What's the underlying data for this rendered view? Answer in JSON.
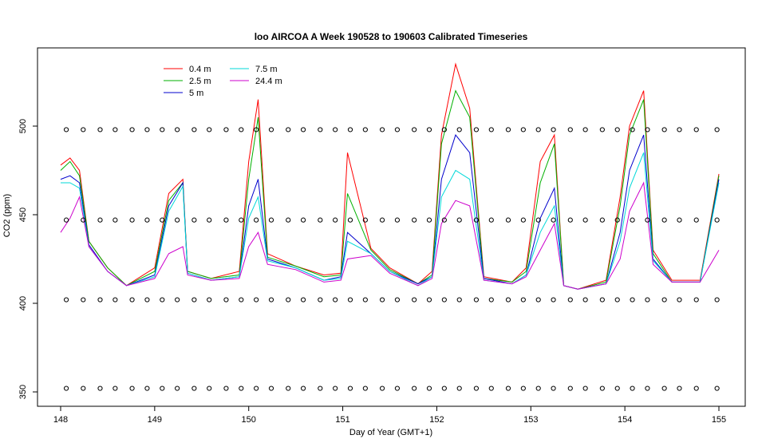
{
  "chart_data": {
    "type": "line",
    "title": "loo AIRCOA A  Week 190528 to 190603  Calibrated Timeseries",
    "xlabel": "Day of Year (GMT+1)",
    "ylabel": "CO2 (ppm)",
    "xlim": [
      148,
      155
    ],
    "ylim": [
      345,
      545
    ],
    "x_ticks": [
      148,
      149,
      150,
      151,
      152,
      153,
      154,
      155
    ],
    "y_ticks": [
      350,
      400,
      450,
      500
    ],
    "x_tick_labels": [
      "148",
      "149",
      "150",
      "151",
      "152",
      "153",
      "154",
      "155"
    ],
    "y_tick_labels": [
      "350",
      "400",
      "450",
      "500"
    ],
    "grid": false,
    "legend_position": "top-left",
    "legend": [
      "0.4 m",
      "2.5 m",
      "5 m",
      "7.5 m",
      "24.4 m"
    ],
    "series": [
      {
        "name": "0.4 m",
        "color": "#ff0000",
        "x": [
          148.0,
          148.1,
          148.2,
          148.3,
          148.5,
          148.7,
          149.0,
          149.15,
          149.3,
          149.35,
          149.6,
          149.9,
          150.0,
          150.1,
          150.2,
          150.5,
          150.8,
          150.98,
          151.05,
          151.3,
          151.5,
          151.8,
          151.95,
          152.05,
          152.2,
          152.35,
          152.5,
          152.8,
          152.95,
          153.1,
          153.25,
          153.35,
          153.5,
          153.8,
          153.95,
          154.05,
          154.2,
          154.3,
          154.5,
          154.8,
          155.0
        ],
        "y": [
          478,
          482,
          475,
          435,
          420,
          410,
          420,
          462,
          470,
          418,
          414,
          418,
          480,
          515,
          428,
          421,
          416,
          417,
          485,
          431,
          420,
          411,
          418,
          495,
          535,
          510,
          415,
          412,
          420,
          480,
          495,
          410,
          408,
          413,
          460,
          500,
          520,
          430,
          413,
          413,
          473
        ]
      },
      {
        "name": "2.5 m",
        "color": "#00b000",
        "x": [
          148.0,
          148.1,
          148.2,
          148.3,
          148.5,
          148.7,
          149.0,
          149.15,
          149.3,
          149.35,
          149.6,
          149.9,
          150.0,
          150.1,
          150.2,
          150.5,
          150.8,
          150.98,
          151.05,
          151.3,
          151.5,
          151.8,
          151.95,
          152.05,
          152.2,
          152.35,
          152.5,
          152.8,
          152.95,
          153.1,
          153.25,
          153.35,
          153.5,
          153.8,
          153.95,
          154.05,
          154.2,
          154.3,
          154.5,
          154.8,
          155.0
        ],
        "y": [
          475,
          480,
          472,
          435,
          420,
          410,
          418,
          458,
          468,
          418,
          414,
          416,
          470,
          505,
          426,
          421,
          415,
          416,
          462,
          430,
          419,
          411,
          416,
          490,
          520,
          505,
          414,
          412,
          418,
          468,
          490,
          410,
          408,
          412,
          455,
          495,
          515,
          428,
          412,
          412,
          472
        ]
      },
      {
        "name": "5 m",
        "color": "#0000cc",
        "x": [
          148.0,
          148.1,
          148.2,
          148.3,
          148.5,
          148.7,
          149.0,
          149.15,
          149.3,
          149.35,
          149.6,
          149.9,
          150.0,
          150.1,
          150.2,
          150.5,
          150.8,
          150.98,
          151.05,
          151.3,
          151.5,
          151.8,
          151.95,
          152.05,
          152.2,
          152.35,
          152.5,
          152.8,
          152.95,
          153.1,
          153.25,
          153.35,
          153.5,
          153.8,
          153.95,
          154.05,
          154.2,
          154.3,
          154.5,
          154.8,
          155.0
        ],
        "y": [
          470,
          472,
          468,
          433,
          418,
          410,
          416,
          455,
          468,
          417,
          413,
          415,
          455,
          470,
          425,
          420,
          413,
          415,
          440,
          428,
          418,
          411,
          415,
          470,
          495,
          485,
          414,
          411,
          416,
          448,
          465,
          410,
          408,
          411,
          440,
          475,
          495,
          425,
          412,
          412,
          470
        ]
      },
      {
        "name": "7.5 m",
        "color": "#00d8d8",
        "x": [
          148.0,
          148.1,
          148.2,
          148.3,
          148.5,
          148.7,
          149.0,
          149.15,
          149.3,
          149.35,
          149.6,
          149.9,
          150.0,
          150.1,
          150.2,
          150.5,
          150.8,
          150.98,
          151.05,
          151.3,
          151.5,
          151.8,
          151.95,
          152.05,
          152.2,
          152.35,
          152.5,
          152.8,
          152.95,
          153.1,
          153.25,
          153.35,
          153.5,
          153.8,
          153.95,
          154.05,
          154.2,
          154.3,
          154.5,
          154.8,
          155.0
        ],
        "y": [
          468,
          468,
          465,
          432,
          418,
          410,
          415,
          452,
          466,
          417,
          413,
          415,
          448,
          460,
          424,
          420,
          413,
          414,
          435,
          428,
          418,
          410,
          415,
          460,
          475,
          470,
          413,
          411,
          416,
          440,
          455,
          410,
          408,
          411,
          435,
          465,
          485,
          424,
          412,
          412,
          468
        ]
      },
      {
        "name": "24.4 m",
        "color": "#cc00cc",
        "x": [
          148.0,
          148.1,
          148.2,
          148.3,
          148.5,
          148.7,
          149.0,
          149.15,
          149.3,
          149.35,
          149.6,
          149.9,
          150.0,
          150.1,
          150.2,
          150.5,
          150.8,
          150.98,
          151.05,
          151.3,
          151.5,
          151.8,
          151.95,
          152.05,
          152.2,
          152.35,
          152.5,
          152.8,
          152.95,
          153.1,
          153.25,
          153.35,
          153.5,
          153.8,
          153.95,
          154.05,
          154.2,
          154.3,
          154.5,
          154.8,
          155.0
        ],
        "y": [
          440,
          448,
          460,
          432,
          418,
          410,
          414,
          428,
          432,
          416,
          413,
          414,
          432,
          440,
          422,
          419,
          412,
          413,
          425,
          427,
          417,
          410,
          414,
          445,
          458,
          455,
          413,
          411,
          415,
          430,
          445,
          410,
          408,
          411,
          425,
          452,
          468,
          422,
          412,
          412,
          430
        ]
      },
      {
        "name": "",
        "color": "#000000",
        "marker": "circle",
        "x": [
          148.06,
          148.24,
          148.42,
          148.58,
          148.76,
          148.92,
          149.08,
          149.24,
          149.42,
          149.58,
          149.76,
          149.92,
          150.08,
          150.24,
          150.42,
          150.58,
          150.76,
          150.92,
          151.08,
          151.24,
          151.42,
          151.58,
          151.76,
          151.92,
          152.08,
          152.24,
          152.42,
          152.58,
          152.76,
          152.92,
          153.08,
          153.24,
          153.42,
          153.58,
          153.76,
          153.92,
          154.08,
          154.24,
          154.42,
          154.58,
          154.76,
          154.98
        ],
        "y": [
          498,
          498,
          498,
          498,
          498,
          498,
          498,
          498,
          498,
          498,
          498,
          498,
          498,
          498,
          498,
          498,
          498,
          498,
          498,
          498,
          498,
          498,
          498,
          498,
          498,
          498,
          498,
          498,
          498,
          498,
          498,
          498,
          498,
          498,
          498,
          498,
          498,
          498,
          498,
          498,
          498,
          498
        ]
      },
      {
        "name": "",
        "color": "#000000",
        "marker": "circle",
        "x": [
          148.06,
          148.24,
          148.42,
          148.58,
          148.76,
          148.92,
          149.08,
          149.24,
          149.42,
          149.58,
          149.76,
          149.92,
          150.08,
          150.24,
          150.42,
          150.58,
          150.76,
          150.92,
          151.08,
          151.24,
          151.42,
          151.58,
          151.76,
          151.92,
          152.08,
          152.24,
          152.42,
          152.58,
          152.76,
          152.92,
          153.08,
          153.24,
          153.42,
          153.58,
          153.76,
          153.92,
          154.08,
          154.24,
          154.42,
          154.58,
          154.76,
          154.98
        ],
        "y": [
          447,
          447,
          447,
          447,
          447,
          447,
          447,
          447,
          447,
          447,
          447,
          447,
          447,
          447,
          447,
          447,
          447,
          447,
          447,
          447,
          447,
          447,
          447,
          447,
          447,
          447,
          447,
          447,
          447,
          447,
          447,
          447,
          447,
          447,
          447,
          447,
          447,
          447,
          447,
          447,
          447,
          447
        ]
      },
      {
        "name": "",
        "color": "#000000",
        "marker": "circle",
        "x": [
          148.06,
          148.24,
          148.42,
          148.58,
          148.76,
          148.92,
          149.08,
          149.24,
          149.42,
          149.58,
          149.76,
          149.92,
          150.08,
          150.24,
          150.42,
          150.58,
          150.76,
          150.92,
          151.08,
          151.24,
          151.42,
          151.58,
          151.76,
          151.92,
          152.08,
          152.24,
          152.42,
          152.58,
          152.76,
          152.92,
          153.08,
          153.24,
          153.42,
          153.58,
          153.76,
          153.92,
          154.08,
          154.24,
          154.42,
          154.58,
          154.76,
          154.98
        ],
        "y": [
          402,
          402,
          402,
          402,
          402,
          402,
          402,
          402,
          402,
          402,
          402,
          402,
          402,
          402,
          402,
          402,
          402,
          402,
          402,
          402,
          402,
          402,
          402,
          402,
          402,
          402,
          402,
          402,
          402,
          402,
          402,
          402,
          402,
          402,
          402,
          402,
          402,
          402,
          402,
          402,
          402,
          402
        ]
      },
      {
        "name": "",
        "color": "#000000",
        "marker": "circle",
        "x": [
          148.06,
          148.24,
          148.42,
          148.58,
          148.76,
          148.92,
          149.08,
          149.24,
          149.42,
          149.58,
          149.76,
          149.92,
          150.08,
          150.24,
          150.42,
          150.58,
          150.76,
          150.92,
          151.08,
          151.24,
          151.42,
          151.58,
          151.76,
          151.92,
          152.08,
          152.24,
          152.42,
          152.58,
          152.76,
          152.92,
          153.08,
          153.24,
          153.42,
          153.58,
          153.76,
          153.92,
          154.08,
          154.24,
          154.42,
          154.58,
          154.76,
          154.98
        ],
        "y": [
          352,
          352,
          352,
          352,
          352,
          352,
          352,
          352,
          352,
          352,
          352,
          352,
          352,
          352,
          352,
          352,
          352,
          352,
          352,
          352,
          352,
          352,
          352,
          352,
          352,
          352,
          352,
          352,
          352,
          352,
          352,
          352,
          352,
          352,
          352,
          352,
          352,
          352,
          352,
          352,
          352,
          352
        ]
      }
    ]
  }
}
